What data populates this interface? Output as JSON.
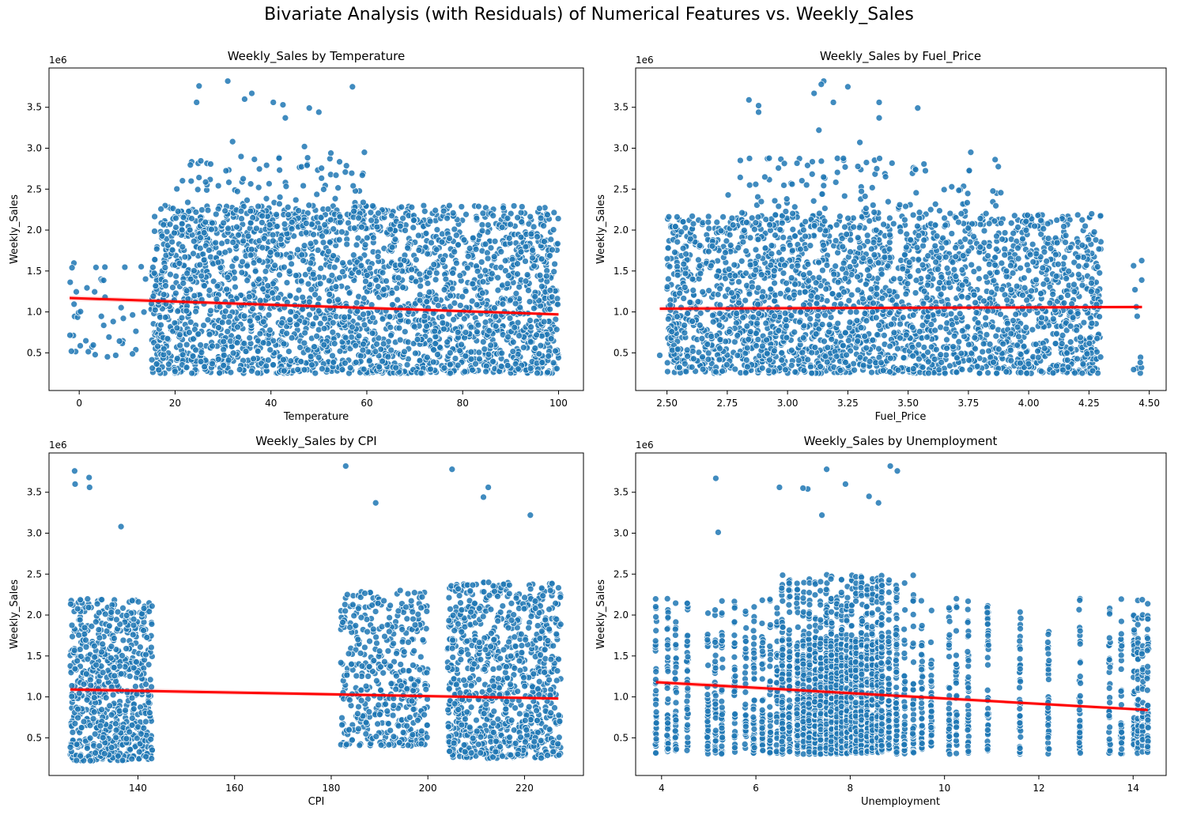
{
  "figure": {
    "suptitle": "Bivariate Analysis (with Residuals) of Numerical Features vs. Weekly_Sales"
  },
  "style": {
    "point_color": "#1f77b4",
    "point_edge": "#ffffff",
    "regression_color": "#ff0000"
  },
  "chart_data": [
    {
      "type": "scatter",
      "title": "Weekly_Sales by Temperature",
      "xlabel": "Temperature",
      "ylabel": "Weekly_Sales",
      "y_offset_text": "1e6",
      "xlim": [
        -6.3,
        105.2
      ],
      "ylim": [
        0.04,
        3.98
      ],
      "xticks": [
        0,
        20,
        40,
        60,
        80,
        100
      ],
      "xtick_labels": [
        "0",
        "20",
        "40",
        "60",
        "80",
        "100"
      ],
      "yticks": [
        0.5,
        1.0,
        1.5,
        2.0,
        2.5,
        3.0,
        3.5
      ],
      "ytick_labels": [
        "0.5",
        "1.0",
        "1.5",
        "2.0",
        "2.5",
        "3.0",
        "3.5"
      ],
      "regression": {
        "x": [
          -2,
          100
        ],
        "y": [
          1.17,
          0.97
        ]
      },
      "clusters": [
        {
          "x": [
            15,
            100
          ],
          "y": [
            0.25,
            2.3
          ],
          "n": 2600
        },
        {
          "x": [
            20,
            60
          ],
          "y": [
            2.0,
            2.9
          ],
          "n": 140
        },
        {
          "x": [
            -2,
            18
          ],
          "y": [
            0.45,
            1.6
          ],
          "n": 50
        }
      ],
      "outliers": {
        "x": [
          31,
          25,
          24.5,
          36,
          34.5,
          57,
          40.5,
          42.5,
          43,
          48,
          50,
          47,
          32,
          52.5,
          59.5
        ],
        "y": [
          3.82,
          3.76,
          3.56,
          3.67,
          3.6,
          3.75,
          3.56,
          3.53,
          3.37,
          3.49,
          3.44,
          3.02,
          3.08,
          2.94,
          2.95
        ]
      }
    },
    {
      "type": "scatter",
      "title": "Weekly_Sales by Fuel_Price",
      "xlabel": "Fuel_Price",
      "ylabel": "Weekly_Sales",
      "y_offset_text": "1e6",
      "xlim": [
        2.37,
        4.57
      ],
      "ylim": [
        0.04,
        3.98
      ],
      "xticks": [
        2.5,
        2.75,
        3.0,
        3.25,
        3.5,
        3.75,
        4.0,
        4.25,
        4.5
      ],
      "xtick_labels": [
        "2.50",
        "2.75",
        "3.00",
        "3.25",
        "3.50",
        "3.75",
        "4.00",
        "4.25",
        "4.50"
      ],
      "yticks": [
        0.5,
        1.0,
        1.5,
        2.0,
        2.5,
        3.0,
        3.5
      ],
      "ytick_labels": [
        "0.5",
        "1.0",
        "1.5",
        "2.0",
        "2.5",
        "3.0",
        "3.5"
      ],
      "regression": {
        "x": [
          2.47,
          4.47
        ],
        "y": [
          1.04,
          1.06
        ]
      },
      "clusters": [
        {
          "x": [
            2.5,
            4.3
          ],
          "y": [
            0.25,
            2.2
          ],
          "n": 2600
        },
        {
          "x": [
            2.75,
            3.9
          ],
          "y": [
            2.2,
            2.9
          ],
          "n": 110
        },
        {
          "x": [
            4.43,
            4.47
          ],
          "y": [
            0.25,
            1.75
          ],
          "n": 12
        }
      ],
      "outliers": {
        "x": [
          3.15,
          3.14,
          3.25,
          3.11,
          3.19,
          3.13,
          2.84,
          2.88,
          2.88,
          3.38,
          3.38,
          3.54,
          3.3,
          3.76,
          2.47
        ],
        "y": [
          3.82,
          3.78,
          3.75,
          3.67,
          3.56,
          3.22,
          3.59,
          3.52,
          3.44,
          3.56,
          3.37,
          3.49,
          3.07,
          2.95,
          0.47
        ]
      }
    },
    {
      "type": "scatter",
      "title": "Weekly_Sales by CPI",
      "xlabel": "CPI",
      "ylabel": "Weekly_Sales",
      "y_offset_text": "1e6",
      "xlim": [
        121.6,
        232.2
      ],
      "ylim": [
        0.04,
        3.98
      ],
      "xticks": [
        140,
        160,
        180,
        200,
        220
      ],
      "xtick_labels": [
        "140",
        "160",
        "180",
        "200",
        "220"
      ],
      "yticks": [
        0.5,
        1.0,
        1.5,
        2.0,
        2.5,
        3.0,
        3.5
      ],
      "ytick_labels": [
        "0.5",
        "1.0",
        "1.5",
        "2.0",
        "2.5",
        "3.0",
        "3.5"
      ],
      "regression": {
        "x": [
          126,
          227
        ],
        "y": [
          1.09,
          0.98
        ]
      },
      "clusters": [
        {
          "x": [
            126,
            143
          ],
          "y": [
            0.22,
            2.2
          ],
          "n": 700
        },
        {
          "x": [
            182,
            200
          ],
          "y": [
            0.4,
            2.3
          ],
          "n": 450
        },
        {
          "x": [
            204,
            227.5
          ],
          "y": [
            0.25,
            2.4
          ],
          "n": 900
        }
      ],
      "outliers": {
        "x": [
          126.9,
          127,
          129.9,
          130,
          136.5,
          183,
          189.2,
          205,
          211.5,
          212.5,
          221.2
        ],
        "y": [
          3.76,
          3.6,
          3.68,
          3.56,
          3.08,
          3.82,
          3.37,
          3.78,
          3.44,
          3.56,
          3.22
        ]
      }
    },
    {
      "type": "scatter",
      "title": "Weekly_Sales by Unemployment",
      "xlabel": "Unemployment",
      "ylabel": "Weekly_Sales",
      "y_offset_text": "1e6",
      "xlim": [
        3.45,
        14.7
      ],
      "ylim": [
        0.04,
        3.98
      ],
      "xticks": [
        4,
        6,
        8,
        10,
        12,
        14
      ],
      "xtick_labels": [
        "4",
        "6",
        "8",
        "10",
        "12",
        "14"
      ],
      "yticks": [
        0.5,
        1.0,
        1.5,
        2.0,
        2.5,
        3.0,
        3.5
      ],
      "ytick_labels": [
        "0.5",
        "1.0",
        "1.5",
        "2.0",
        "2.5",
        "3.0",
        "3.5"
      ],
      "regression": {
        "x": [
          3.88,
          14.31
        ],
        "y": [
          1.18,
          0.84
        ]
      },
      "columns": [
        3.88,
        4.13,
        4.3,
        4.55,
        4.98,
        5.14,
        5.28,
        5.55,
        5.78,
        5.96,
        6.14,
        6.3,
        6.45,
        6.56,
        6.71,
        6.88,
        7.01,
        7.13,
        7.26,
        7.37,
        7.5,
        7.6,
        7.72,
        7.82,
        7.93,
        8.03,
        8.12,
        8.24,
        8.36,
        8.47,
        8.58,
        8.67,
        8.82,
        8.98,
        9.15,
        9.34,
        9.52,
        9.72,
        10.1,
        10.25,
        10.5,
        10.92,
        11.6,
        12.2,
        12.87,
        13.5,
        13.75,
        14.02,
        14.1,
        14.2,
        14.31
      ],
      "outliers": {
        "x": [
          5.15,
          6.5,
          7.1,
          7.5,
          7.9,
          8.4,
          8.6,
          9.0,
          8.85,
          7.4,
          7.0,
          5.2
        ],
        "y": [
          3.67,
          3.56,
          3.54,
          3.78,
          3.6,
          3.45,
          3.37,
          3.76,
          3.82,
          3.22,
          3.55,
          3.01
        ]
      }
    }
  ]
}
